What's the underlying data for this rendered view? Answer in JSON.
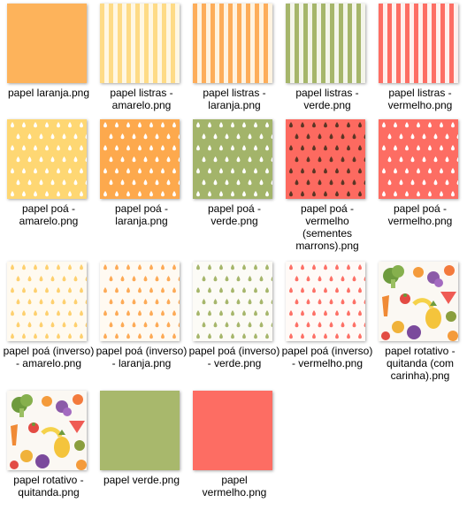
{
  "files": [
    {
      "label": "papel laranja.png",
      "pattern": "solid",
      "bg": "#fdb35b",
      "fg": "",
      "icon": "orange-paper-thumbnail"
    },
    {
      "label": "papel listras - amarelo.png",
      "pattern": "stripes",
      "bg": "#fff7e3",
      "fg": "#fedb86",
      "icon": "yellow-stripes-thumbnail"
    },
    {
      "label": "papel listras - laranja.png",
      "pattern": "stripes",
      "bg": "#fff3e0",
      "fg": "#fdad5a",
      "icon": "orange-stripes-thumbnail"
    },
    {
      "label": "papel listras - verde.png",
      "pattern": "stripes",
      "bg": "#f4f5ea",
      "fg": "#a6b66b",
      "icon": "green-stripes-thumbnail"
    },
    {
      "label": "papel listras - vermelho.png",
      "pattern": "stripes",
      "bg": "#fff0ed",
      "fg": "#fd6e64",
      "icon": "red-stripes-thumbnail"
    },
    {
      "label": "papel poá - amarelo.png",
      "pattern": "drops",
      "bg": "#fed773",
      "fg": "#ffffff",
      "icon": "yellow-dots-thumbnail"
    },
    {
      "label": "papel poá - laranja.png",
      "pattern": "drops",
      "bg": "#fda94d",
      "fg": "#ffffff",
      "icon": "orange-dots-thumbnail"
    },
    {
      "label": "papel poá - verde.png",
      "pattern": "drops",
      "bg": "#a3b46a",
      "fg": "#ffffff",
      "icon": "green-dots-thumbnail"
    },
    {
      "label": "papel poá - vermelho (sementes marrons).png",
      "pattern": "drops",
      "bg": "#fd6a60",
      "fg": "#5a3524",
      "icon": "watermelon-seeds-thumbnail"
    },
    {
      "label": "papel poá - vermelho.png",
      "pattern": "drops",
      "bg": "#fd6d63",
      "fg": "#ffffff",
      "icon": "red-dots-thumbnail"
    },
    {
      "label": "papel poá (inverso) - amarelo.png",
      "pattern": "drops",
      "bg": "#fffaf0",
      "fg": "#fed06e",
      "icon": "yellow-inverse-dots-thumbnail"
    },
    {
      "label": "papel poá (inverso) - laranja.png",
      "pattern": "drops",
      "bg": "#fffaf2",
      "fg": "#fdaa56",
      "icon": "orange-inverse-dots-thumbnail"
    },
    {
      "label": "papel poá (inverso) - verde.png",
      "pattern": "drops",
      "bg": "#fcfbf6",
      "fg": "#a6b66b",
      "icon": "green-inverse-dots-thumbnail"
    },
    {
      "label": "papel poá (inverso) - vermelho.png",
      "pattern": "drops",
      "bg": "#fffaf7",
      "fg": "#fd7066",
      "icon": "red-inverse-dots-thumbnail"
    },
    {
      "label": "papel rotativo - quitanda (com carinha).png",
      "pattern": "fruits",
      "bg": "#fbf8f3",
      "fg": "",
      "icon": "fruit-faces-thumbnail"
    },
    {
      "label": "papel rotativo - quitanda.png",
      "pattern": "fruits",
      "bg": "#fbf8f3",
      "fg": "",
      "icon": "fruit-thumbnail"
    },
    {
      "label": "papel verde.png",
      "pattern": "solid",
      "bg": "#a8b86c",
      "fg": "",
      "icon": "green-paper-thumbnail"
    },
    {
      "label": "papel vermelho.png",
      "pattern": "solid",
      "bg": "#fd6d63",
      "fg": "",
      "icon": "red-paper-thumbnail"
    }
  ]
}
